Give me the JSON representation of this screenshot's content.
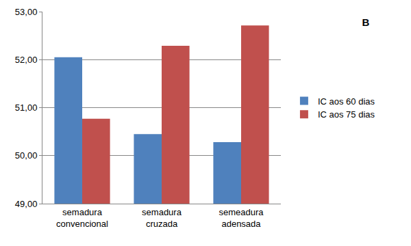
{
  "chart_data": {
    "type": "bar",
    "title": "B",
    "categories": [
      "semadura convencional",
      "semadura cruzada",
      "semeadura adensada"
    ],
    "series": [
      {
        "name": "IC aos 60 dias",
        "color": "#4f81bd",
        "values": [
          52.05,
          50.45,
          50.28
        ]
      },
      {
        "name": "IC aos 75 dias",
        "color": "#c0504d",
        "values": [
          50.77,
          52.29,
          52.71
        ]
      }
    ],
    "ylim": [
      49,
      53
    ],
    "yticks": [
      {
        "value": 49,
        "label": "49,00"
      },
      {
        "value": 50,
        "label": "50,00"
      },
      {
        "value": 51,
        "label": "51,00"
      },
      {
        "value": 52,
        "label": "52,00"
      },
      {
        "value": 53,
        "label": "53,00"
      }
    ],
    "grid": true,
    "legend": "right"
  }
}
